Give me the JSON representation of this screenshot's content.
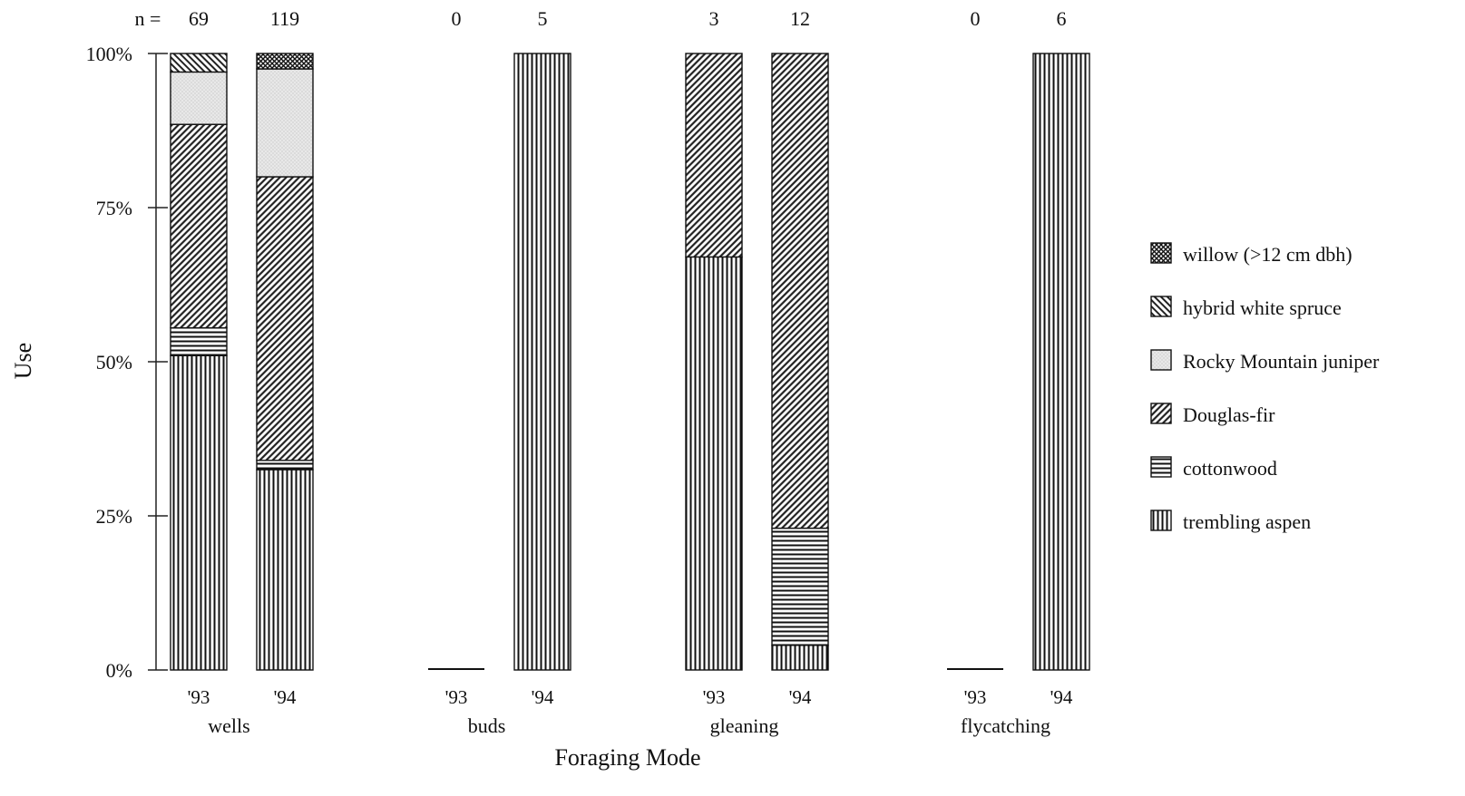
{
  "chart_data": {
    "type": "bar",
    "stacked": true,
    "percent": true,
    "ylabel": "Use",
    "xlabel": "Foraging Mode",
    "n_prefix": "n =",
    "ylim": [
      0,
      100
    ],
    "yticks": [
      "0%",
      "25%",
      "50%",
      "75%",
      "100%"
    ],
    "ytick_values": [
      0,
      25,
      50,
      75,
      100
    ],
    "legend_position": "right",
    "groups": [
      {
        "name": "wells",
        "bars": [
          {
            "year": "'93",
            "n": "69",
            "values": {
              "trembling aspen": 51,
              "cottonwood": 4.5,
              "Douglas-fir": 33,
              "Rocky Mountain juniper": 8.5,
              "hybrid white spruce": 3,
              "willow (>12 cm dbh)": 0
            }
          },
          {
            "year": "'94",
            "n": "119",
            "values": {
              "trembling aspen": 32.5,
              "cottonwood": 1.5,
              "Douglas-fir": 46,
              "Rocky Mountain juniper": 17.5,
              "hybrid white spruce": 0,
              "willow (>12 cm dbh)": 2.5
            }
          }
        ]
      },
      {
        "name": "buds",
        "bars": [
          {
            "year": "'93",
            "n": "0",
            "values": {
              "trembling aspen": 0,
              "cottonwood": 0,
              "Douglas-fir": 0,
              "Rocky Mountain juniper": 0,
              "hybrid white spruce": 0,
              "willow (>12 cm dbh)": 0
            }
          },
          {
            "year": "'94",
            "n": "5",
            "values": {
              "trembling aspen": 100,
              "cottonwood": 0,
              "Douglas-fir": 0,
              "Rocky Mountain juniper": 0,
              "hybrid white spruce": 0,
              "willow (>12 cm dbh)": 0
            }
          }
        ]
      },
      {
        "name": "gleaning",
        "bars": [
          {
            "year": "'93",
            "n": "3",
            "values": {
              "trembling aspen": 67,
              "cottonwood": 0,
              "Douglas-fir": 33,
              "Rocky Mountain juniper": 0,
              "hybrid white spruce": 0,
              "willow (>12 cm dbh)": 0
            }
          },
          {
            "year": "'94",
            "n": "12",
            "values": {
              "trembling aspen": 4,
              "cottonwood": 19,
              "Douglas-fir": 77,
              "Rocky Mountain juniper": 0,
              "hybrid white spruce": 0,
              "willow (>12 cm dbh)": 0
            }
          }
        ]
      },
      {
        "name": "flycatching",
        "bars": [
          {
            "year": "'93",
            "n": "0",
            "values": {
              "trembling aspen": 0,
              "cottonwood": 0,
              "Douglas-fir": 0,
              "Rocky Mountain juniper": 0,
              "hybrid white spruce": 0,
              "willow (>12 cm dbh)": 0
            }
          },
          {
            "year": "'94",
            "n": "6",
            "values": {
              "trembling aspen": 100,
              "cottonwood": 0,
              "Douglas-fir": 0,
              "Rocky Mountain juniper": 0,
              "hybrid white spruce": 0,
              "willow (>12 cm dbh)": 0
            }
          }
        ]
      }
    ],
    "series": [
      {
        "name": "trembling aspen",
        "pattern": "vertical-lines"
      },
      {
        "name": "cottonwood",
        "pattern": "horizontal-lines"
      },
      {
        "name": "Douglas-fir",
        "pattern": "dense-diagonal-lines"
      },
      {
        "name": "Rocky Mountain juniper",
        "pattern": "light-stipple"
      },
      {
        "name": "hybrid white spruce",
        "pattern": "diagonal-lines"
      },
      {
        "name": "willow (>12 cm dbh)",
        "pattern": "crosshatch"
      }
    ],
    "legend_order": [
      "willow (>12 cm dbh)",
      "hybrid white spruce",
      "Rocky Mountain juniper",
      "Douglas-fir",
      "cottonwood",
      "trembling aspen"
    ]
  }
}
